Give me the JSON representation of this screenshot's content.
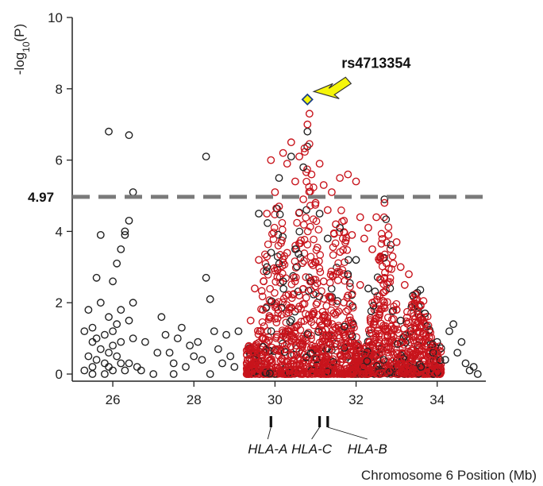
{
  "chart_data": {
    "type": "scatter",
    "title": "",
    "xlabel": "Chromosome 6 Position (Mb)",
    "ylabel": "-log",
    "ylabel_sub": "10",
    "ylabel_suffix": "(P)",
    "xlim": [
      25,
      35.2
    ],
    "ylim": [
      -0.2,
      10
    ],
    "x_ticks": [
      26,
      28,
      30,
      32,
      34
    ],
    "x_tick_labels": [
      "26",
      "28",
      "30",
      "32",
      "34"
    ],
    "y_ticks": [
      0,
      2,
      4,
      6,
      8,
      10
    ],
    "y_tick_labels": [
      "0",
      "2",
      "4",
      "6",
      "8",
      "10"
    ],
    "grid": false,
    "threshold": {
      "value": 4.97,
      "label": "4.97",
      "color": "#7a7a7a"
    },
    "highlight": {
      "name": "rs4713354",
      "x": 30.8,
      "y": 7.7,
      "color": "#f5f50a",
      "arrow_color": "#f5f50a"
    },
    "series_colors": {
      "black": "#222222",
      "red": "#c8141c"
    },
    "series": [
      {
        "color_key": "black",
        "points": [
          [
            25.3,
            0.1
          ],
          [
            25.4,
            1.8
          ],
          [
            25.5,
            1.3
          ],
          [
            25.6,
            0.4
          ],
          [
            25.5,
            0.9
          ],
          [
            25.7,
            0.7
          ],
          [
            25.8,
            0.3
          ],
          [
            25.9,
            0.2
          ],
          [
            25.6,
            1.0
          ],
          [
            25.8,
            1.1
          ],
          [
            25.9,
            0.6
          ],
          [
            26.0,
            0.8
          ],
          [
            26.1,
            0.5
          ],
          [
            26.2,
            0.3
          ],
          [
            26.3,
            0.1
          ],
          [
            26.1,
            1.4
          ],
          [
            26.2,
            0.9
          ],
          [
            25.7,
            2.0
          ],
          [
            25.9,
            1.6
          ],
          [
            26.0,
            1.2
          ],
          [
            25.6,
            2.7
          ],
          [
            25.7,
            3.9
          ],
          [
            25.9,
            6.8
          ],
          [
            26.4,
            6.7
          ],
          [
            26.5,
            5.1
          ],
          [
            26.4,
            4.3
          ],
          [
            26.3,
            3.9
          ],
          [
            26.2,
            3.5
          ],
          [
            26.1,
            3.1
          ],
          [
            26.0,
            2.6
          ],
          [
            26.3,
            4.0
          ],
          [
            26.5,
            2.0
          ],
          [
            26.6,
            0.2
          ],
          [
            26.4,
            0.3
          ],
          [
            26.5,
            1.0
          ],
          [
            25.4,
            0.5
          ],
          [
            25.5,
            0.2
          ],
          [
            25.3,
            1.2
          ],
          [
            25.8,
            0.0
          ],
          [
            26.0,
            0.1
          ],
          [
            26.2,
            1.8
          ],
          [
            26.4,
            1.5
          ],
          [
            26.7,
            0.1
          ],
          [
            27.0,
            0.0
          ],
          [
            27.2,
            1.6
          ],
          [
            27.3,
            1.1
          ],
          [
            27.4,
            0.6
          ],
          [
            27.5,
            0.3
          ],
          [
            27.6,
            1.0
          ],
          [
            27.7,
            1.3
          ],
          [
            27.8,
            0.2
          ],
          [
            27.9,
            0.8
          ],
          [
            28.0,
            0.5
          ],
          [
            28.1,
            0.9
          ],
          [
            28.2,
            0.4
          ],
          [
            28.3,
            2.7
          ],
          [
            28.4,
            2.1
          ],
          [
            28.3,
            6.1
          ],
          [
            28.5,
            1.2
          ],
          [
            28.6,
            0.7
          ],
          [
            28.7,
            0.3
          ],
          [
            28.8,
            1.1
          ],
          [
            28.9,
            0.5
          ],
          [
            29.0,
            0.2
          ],
          [
            29.1,
            1.2
          ],
          [
            28.4,
            0.0
          ],
          [
            27.5,
            0.0
          ],
          [
            27.1,
            0.6
          ],
          [
            25.5,
            0.0
          ],
          [
            26.8,
            0.9
          ],
          [
            30.1,
            5.5
          ],
          [
            30.4,
            6.1
          ],
          [
            30.7,
            5.8
          ],
          [
            30.8,
            6.8
          ],
          [
            31.1,
            4.5
          ],
          [
            31.3,
            3.8
          ],
          [
            31.6,
            4.1
          ],
          [
            32.0,
            3.2
          ],
          [
            32.3,
            2.4
          ],
          [
            32.7,
            4.9
          ],
          [
            33.1,
            1.5
          ],
          [
            33.4,
            2.2
          ],
          [
            33.7,
            1.7
          ],
          [
            34.0,
            0.9
          ],
          [
            34.3,
            1.2
          ],
          [
            34.5,
            0.6
          ],
          [
            34.7,
            0.3
          ],
          [
            34.8,
            0.1
          ],
          [
            34.9,
            0.2
          ],
          [
            35.0,
            0.0
          ],
          [
            34.6,
            0.9
          ],
          [
            34.4,
            1.4
          ],
          [
            34.2,
            0.4
          ],
          [
            33.9,
            0.6
          ],
          [
            33.6,
            0.2
          ],
          [
            31.8,
            2.8
          ],
          [
            30.5,
            3.5
          ],
          [
            30.2,
            2.6
          ],
          [
            29.8,
            3.0
          ],
          [
            29.6,
            4.5
          ]
        ]
      },
      {
        "color_key": "red",
        "points": [
          [
            29.4,
            1.5
          ],
          [
            29.5,
            2.4
          ],
          [
            29.6,
            3.2
          ],
          [
            29.7,
            1.8
          ],
          [
            29.8,
            4.5
          ],
          [
            29.9,
            6.0
          ],
          [
            30.0,
            5.1
          ],
          [
            30.1,
            4.7
          ],
          [
            30.2,
            6.2
          ],
          [
            30.3,
            5.9
          ],
          [
            30.4,
            6.5
          ],
          [
            30.5,
            5.4
          ],
          [
            30.6,
            6.1
          ],
          [
            30.7,
            4.9
          ],
          [
            30.8,
            7.0
          ],
          [
            30.85,
            7.3
          ],
          [
            30.9,
            5.6
          ],
          [
            31.0,
            4.8
          ],
          [
            31.1,
            5.9
          ],
          [
            31.2,
            5.3
          ],
          [
            31.3,
            4.6
          ],
          [
            31.4,
            5.1
          ],
          [
            31.5,
            4.2
          ],
          [
            31.6,
            5.5
          ],
          [
            31.7,
            4.3
          ],
          [
            31.8,
            5.6
          ],
          [
            31.9,
            3.9
          ],
          [
            32.0,
            5.4
          ],
          [
            32.1,
            4.4
          ],
          [
            32.2,
            3.8
          ],
          [
            32.3,
            4.1
          ],
          [
            32.4,
            3.5
          ],
          [
            32.5,
            4.4
          ],
          [
            32.6,
            3.3
          ],
          [
            32.7,
            4.8
          ],
          [
            32.8,
            3.9
          ],
          [
            32.9,
            3.3
          ],
          [
            33.0,
            3.7
          ],
          [
            33.1,
            3.0
          ],
          [
            33.2,
            2.5
          ],
          [
            33.3,
            2.8
          ],
          [
            33.4,
            1.9
          ],
          [
            33.5,
            2.1
          ],
          [
            33.6,
            1.6
          ],
          [
            33.7,
            1.4
          ],
          [
            33.8,
            1.2
          ],
          [
            33.9,
            0.8
          ],
          [
            34.0,
            0.6
          ],
          [
            29.5,
            0.3
          ],
          [
            30.0,
            2.9
          ],
          [
            30.3,
            3.4
          ],
          [
            30.6,
            2.2
          ],
          [
            30.9,
            3.1
          ],
          [
            31.2,
            2.6
          ],
          [
            31.5,
            2.8
          ],
          [
            31.8,
            2.2
          ],
          [
            32.1,
            2.5
          ],
          [
            32.4,
            2.0
          ],
          [
            32.7,
            2.7
          ],
          [
            33.0,
            1.8
          ]
        ]
      }
    ],
    "annotations": {
      "genes": [
        {
          "name": "HLA-A",
          "x": 29.9
        },
        {
          "name": "HLA-C",
          "x": 31.1
        },
        {
          "name": "HLA-B",
          "x": 31.3
        }
      ]
    }
  }
}
